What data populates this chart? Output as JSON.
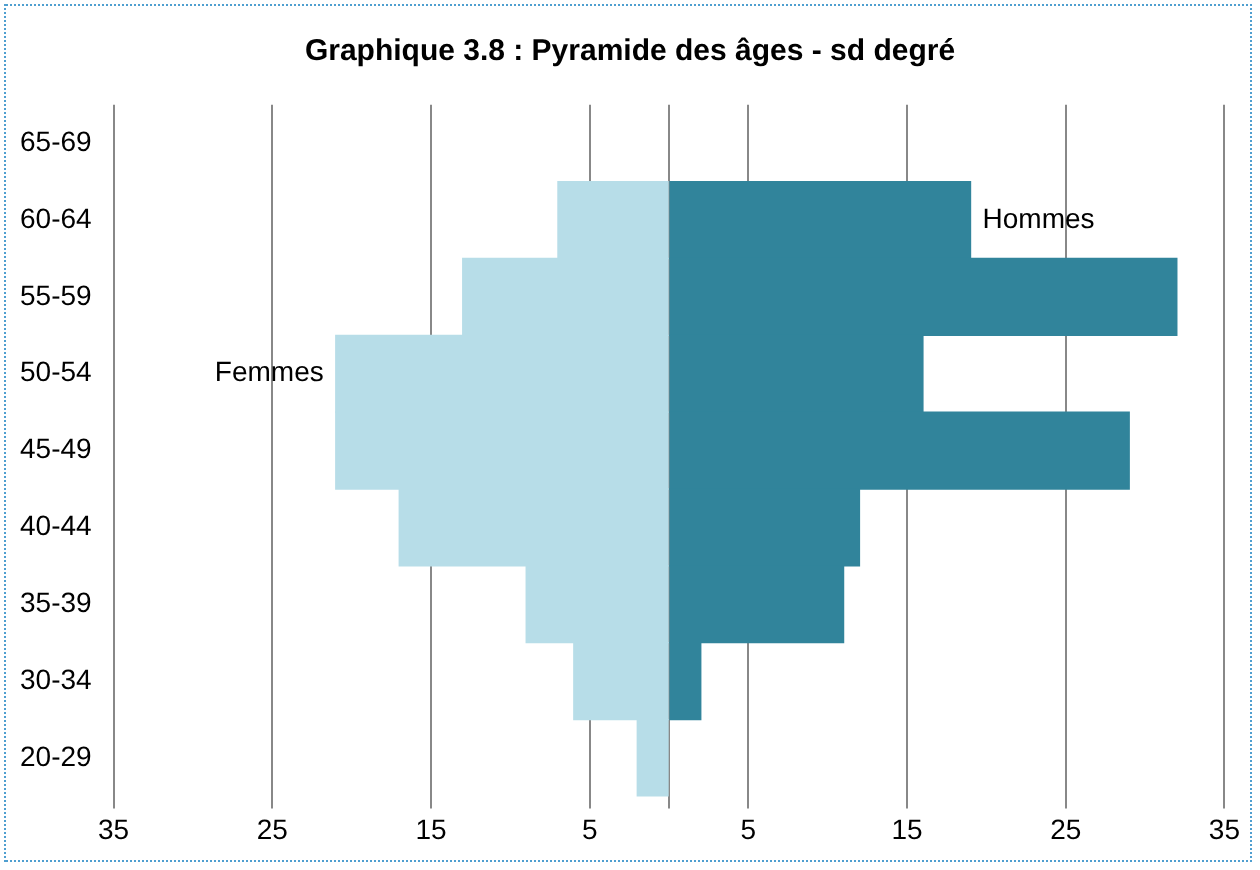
{
  "chart_data": {
    "type": "bar",
    "orientation": "horizontal",
    "stacked": true,
    "title": "Graphique 3.8 : Pyramide des âges - sd degré",
    "categories": [
      "65-69",
      "60-64",
      "55-59",
      "50-54",
      "45-49",
      "40-44",
      "35-39",
      "30-34",
      "20-29"
    ],
    "series": [
      {
        "name": "Femmes",
        "color": "#b7dde8",
        "values": [
          null,
          -7,
          -13,
          -21,
          -21,
          -17,
          -9,
          -6,
          -2
        ]
      },
      {
        "name": "Hommes",
        "color": "#31849b",
        "values": [
          null,
          19,
          32,
          16,
          29,
          12,
          11,
          2,
          null
        ]
      }
    ],
    "xlim": [
      -35,
      35
    ],
    "xticks": [
      {
        "value": -35,
        "label": "35"
      },
      {
        "value": -25,
        "label": "25"
      },
      {
        "value": -15,
        "label": "15"
      },
      {
        "value": -5,
        "label": "5"
      },
      {
        "value": 0,
        "label": null
      },
      {
        "value": 5,
        "label": "5"
      },
      {
        "value": 15,
        "label": "15"
      },
      {
        "value": 25,
        "label": "25"
      },
      {
        "value": 35,
        "label": "35"
      }
    ],
    "grid": "x",
    "legend": false
  }
}
